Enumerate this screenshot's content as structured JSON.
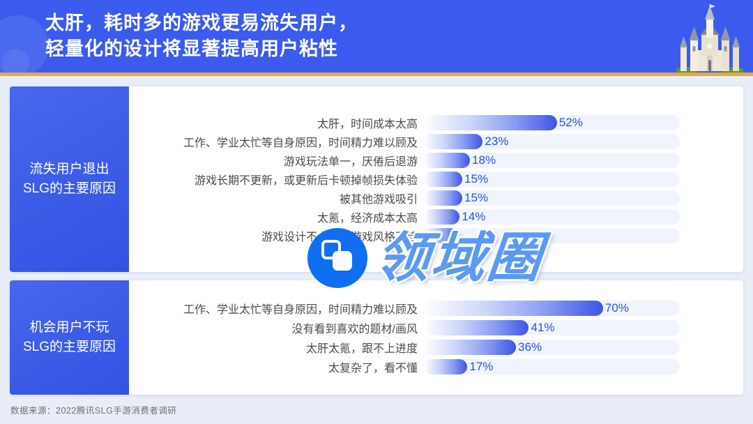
{
  "header": {
    "title_line1": "太肝，耗时多的游戏更易流失用户，",
    "title_line2": "轻量化的设计将显著提高用户粘性",
    "icon": "castle-icon",
    "accent_color": "#3a5bee",
    "divider_color": "#eda53e"
  },
  "chart_data": [
    {
      "type": "bar",
      "orientation": "horizontal",
      "title": "流失用户退出SLG的主要原因",
      "title_lines": [
        "流失用户退出",
        "SLG的主要原因"
      ],
      "categories": [
        "太肝，时间成本太高",
        "工作、学业太忙等自身原因，时间精力难以顾及",
        "游戏玩法单一，厌倦后退游",
        "游戏长期不更新，或更新后卡顿掉帧损失体验",
        "被其他游戏吸引",
        "太氪，经济成本太高",
        "游戏设计不合理，游戏风格不佳"
      ],
      "values": [
        52,
        23,
        18,
        15,
        15,
        14,
        13
      ],
      "value_labels": [
        "52%",
        "23%",
        "18%",
        "15%",
        "15%",
        "14%",
        ""
      ],
      "xlim": [
        0,
        100
      ],
      "grid": false,
      "legend": false,
      "bar_color": "#3d55e8",
      "track_color": "#f0f4fc",
      "value_color": "#2b4fe4"
    },
    {
      "type": "bar",
      "orientation": "horizontal",
      "title": "机会用户不玩SLG的主要原因",
      "title_lines": [
        "机会用户不玩",
        "SLG的主要原因"
      ],
      "categories": [
        "工作、学业太忙等自身原因，时间精力难以顾及",
        "没有看到喜欢的题材/画风",
        "太肝太氪，跟不上进度",
        "太复杂了，看不懂"
      ],
      "values": [
        70,
        41,
        36,
        17
      ],
      "value_labels": [
        "70%",
        "41%",
        "36%",
        "17%"
      ],
      "xlim": [
        0,
        100
      ],
      "grid": false,
      "legend": false,
      "bar_color": "#3d55e8",
      "track_color": "#f0f4fc",
      "value_color": "#2b4fe4"
    }
  ],
  "watermark": {
    "text": "领域圈",
    "logo_icon": "overlapping-squares-icon",
    "text_color": "#5b9af0",
    "logo_color": "#0f6ff0"
  },
  "footer": {
    "source": "数据来源：2022腾讯SLG手游消费者调研"
  }
}
